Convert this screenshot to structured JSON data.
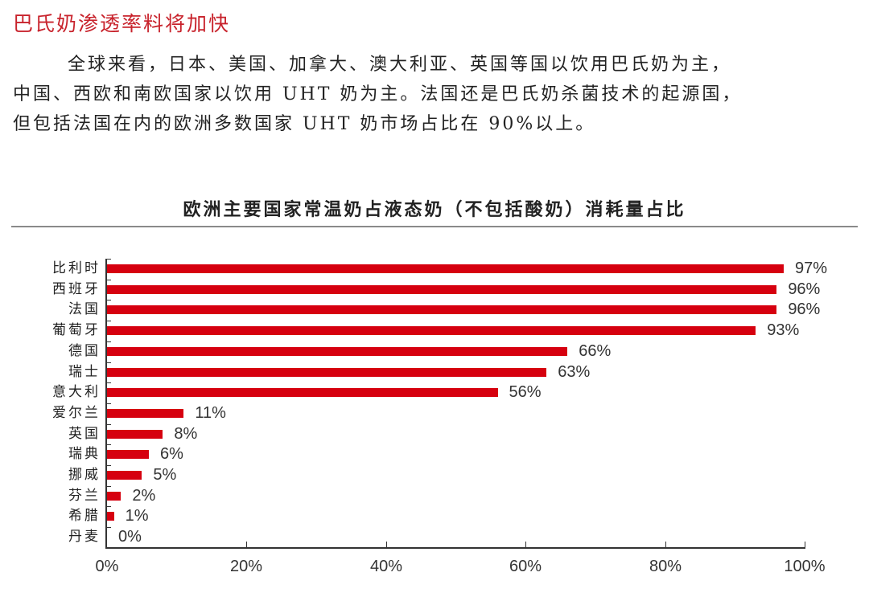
{
  "document": {
    "section_heading": "巴氏奶渗透率料将加快",
    "paragraph_lines": [
      "全球来看，日本、美国、加拿大、澳大利亚、英国等国以饮用巴氏奶为主，",
      "中国、西欧和南欧国家以饮用 UHT 奶为主。法国还是巴氏奶杀菌技术的起源国，",
      "但包括法国在内的欧洲多数国家 UHT 奶市场占比在 90%以上。"
    ]
  },
  "chart_data": {
    "type": "bar",
    "orientation": "horizontal",
    "title": "欧洲主要国家常温奶占液态奶（不包括酸奶）消耗量占比",
    "categories": [
      "比利时",
      "西班牙",
      "法国",
      "葡萄牙",
      "德国",
      "瑞士",
      "意大利",
      "爱尔兰",
      "英国",
      "瑞典",
      "挪威",
      "芬兰",
      "希腊",
      "丹麦"
    ],
    "values": [
      97,
      96,
      96,
      93,
      66,
      63,
      56,
      11,
      8,
      6,
      5,
      2,
      1,
      0
    ],
    "value_labels": [
      "97%",
      "96%",
      "96%",
      "93%",
      "66%",
      "63%",
      "56%",
      "11%",
      "8%",
      "6%",
      "5%",
      "2%",
      "1%",
      "0%"
    ],
    "xlabel": "",
    "ylabel": "",
    "xlim": [
      0,
      100
    ],
    "x_ticks": [
      "0%",
      "20%",
      "40%",
      "60%",
      "80%",
      "100%"
    ],
    "grid": false,
    "legend": null,
    "bar_color": "#d6000f"
  }
}
